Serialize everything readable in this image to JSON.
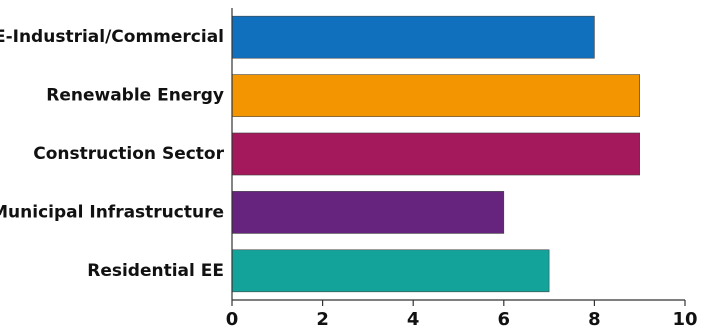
{
  "chart_data": {
    "type": "bar",
    "orientation": "horizontal",
    "title": "",
    "xlabel": "",
    "ylabel": "",
    "xlim": [
      0,
      10
    ],
    "xticks": [
      0,
      2,
      4,
      6,
      8,
      10
    ],
    "grid": false,
    "legend": "none",
    "categories": [
      "EE-Industrial/Commercial",
      "Renewable Energy",
      "Construction Sector",
      "Municipal Infrastructure",
      "Residential EE"
    ],
    "values": [
      8,
      9,
      9,
      6,
      7
    ],
    "colors": [
      "#1170bd",
      "#f29500",
      "#a3195b",
      "#66247f",
      "#13a39b"
    ]
  }
}
